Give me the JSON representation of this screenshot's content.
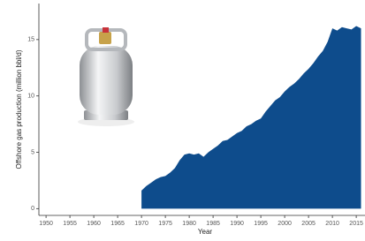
{
  "chart_data": {
    "type": "area",
    "x_label": "Year",
    "y_label": "Offshore gas production (million bbl/d)",
    "x": [
      1970,
      1971,
      1972,
      1973,
      1974,
      1975,
      1976,
      1977,
      1978,
      1979,
      1980,
      1981,
      1982,
      1983,
      1984,
      1985,
      1986,
      1987,
      1988,
      1989,
      1990,
      1991,
      1992,
      1993,
      1994,
      1995,
      1996,
      1997,
      1998,
      1999,
      2000,
      2001,
      2002,
      2003,
      2004,
      2005,
      2006,
      2007,
      2008,
      2009,
      2010,
      2011,
      2012,
      2013,
      2014,
      2015,
      2016
    ],
    "values": [
      1.6,
      2.0,
      2.3,
      2.6,
      2.8,
      2.9,
      3.2,
      3.6,
      4.3,
      4.8,
      4.9,
      4.8,
      4.9,
      4.6,
      5.0,
      5.3,
      5.6,
      6.0,
      6.1,
      6.4,
      6.7,
      6.9,
      7.3,
      7.5,
      7.8,
      8.0,
      8.6,
      9.1,
      9.6,
      9.9,
      10.4,
      10.8,
      11.1,
      11.5,
      12.0,
      12.4,
      12.9,
      13.5,
      14.0,
      14.8,
      16.0,
      15.8,
      16.1,
      16.0,
      15.9,
      16.2,
      16.0
    ],
    "color": "#0e4c8c",
    "xlim": [
      1948.5,
      2019
    ],
    "xticks": [
      1950,
      1955,
      1960,
      1965,
      1970,
      1975,
      1980,
      1985,
      1990,
      1995,
      2000,
      2005,
      2010,
      2015
    ],
    "ylim": [
      -0.6,
      18.2
    ],
    "yticks": [
      0,
      5,
      10,
      15
    ]
  }
}
